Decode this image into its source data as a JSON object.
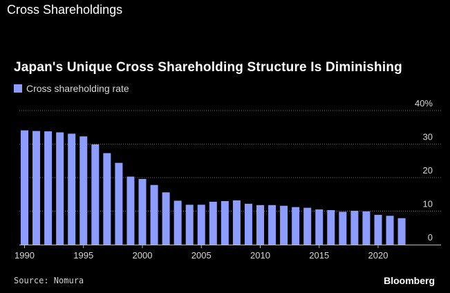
{
  "header": {
    "title": "Cross Shareholdings"
  },
  "chart_data": {
    "type": "bar",
    "title": "Japan's Unique Cross Shareholding Structure Is Diminishing",
    "legend": {
      "label": "Cross shareholding rate",
      "placement": "top-left"
    },
    "x": [
      1990,
      1991,
      1992,
      1993,
      1994,
      1995,
      1996,
      1997,
      1998,
      1999,
      2000,
      2001,
      2002,
      2003,
      2004,
      2005,
      2006,
      2007,
      2008,
      2009,
      2010,
      2011,
      2012,
      2013,
      2014,
      2015,
      2016,
      2017,
      2018,
      2019,
      2020,
      2021,
      2022
    ],
    "series": [
      {
        "name": "Cross shareholding rate",
        "values": [
          34.1,
          33.9,
          33.8,
          33.5,
          33.1,
          32.3,
          29.9,
          27.3,
          24.4,
          20.3,
          19.6,
          17.8,
          15.6,
          13.1,
          11.9,
          11.9,
          12.8,
          13.0,
          13.2,
          12.2,
          11.8,
          11.8,
          11.6,
          11.2,
          11.0,
          10.5,
          10.3,
          9.8,
          10.1,
          9.9,
          8.9,
          8.6,
          7.9
        ]
      }
    ],
    "xticks": [
      1990,
      1995,
      2000,
      2005,
      2010,
      2015,
      2020
    ],
    "ylim": [
      0,
      40
    ],
    "yticks": [
      "0",
      "10",
      "20",
      "30",
      "40%"
    ],
    "grid": true,
    "colors": {
      "bar": "#8c9cff",
      "grid": "#777777",
      "axis": "#bbbbbb"
    }
  },
  "footer": {
    "source": "Source: Nomura",
    "brand": "Bloomberg"
  }
}
